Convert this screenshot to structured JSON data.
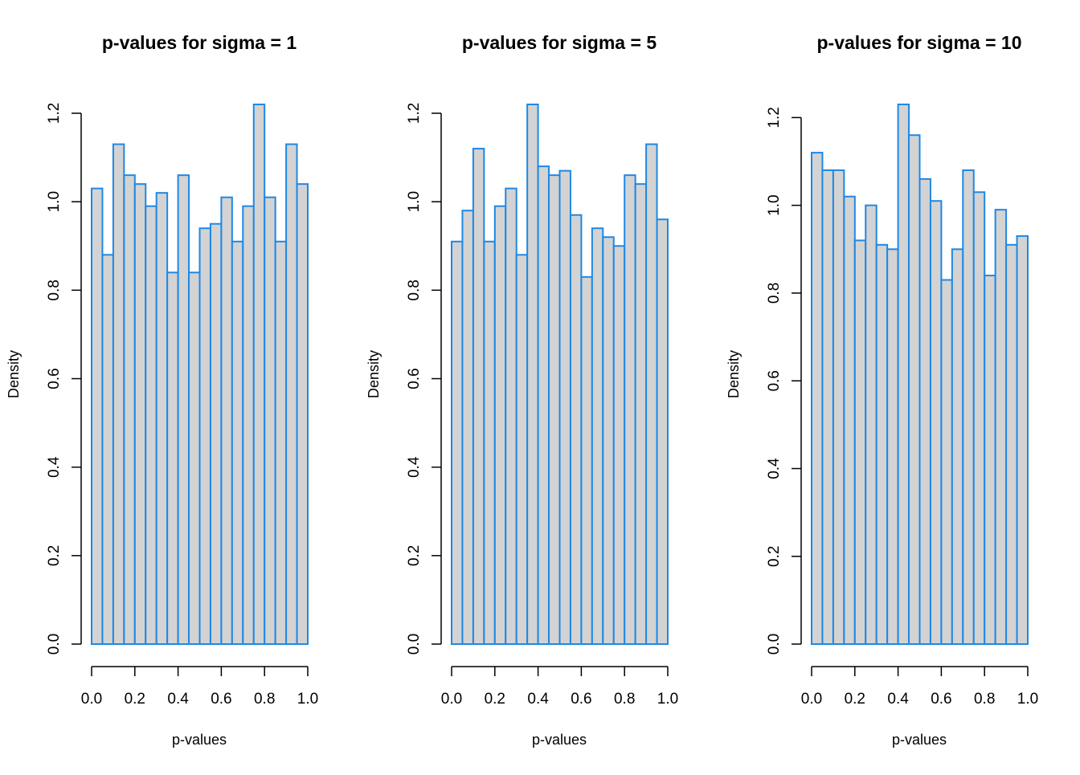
{
  "colors": {
    "bar_fill": "#d3d3d3",
    "bar_border": "#1e88e5",
    "axis": "#000000",
    "background": "#ffffff"
  },
  "chart_data": [
    {
      "type": "bar",
      "title": "p-values for sigma = 1",
      "xlabel": "p-values",
      "ylabel": "Density",
      "bin_edges": [
        0.0,
        0.05,
        0.1,
        0.15,
        0.2,
        0.25,
        0.3,
        0.35,
        0.4,
        0.45,
        0.5,
        0.55,
        0.6,
        0.65,
        0.7,
        0.75,
        0.8,
        0.85,
        0.9,
        0.95,
        1.0
      ],
      "values": [
        1.03,
        0.88,
        1.13,
        1.06,
        1.04,
        0.99,
        1.02,
        0.84,
        1.06,
        0.84,
        0.94,
        0.95,
        1.01,
        0.91,
        0.99,
        1.22,
        1.01,
        0.91,
        1.13,
        1.04
      ],
      "xlim": [
        0,
        1
      ],
      "ylim": [
        0,
        1.22
      ],
      "x_ticks": [
        "0.0",
        "0.2",
        "0.4",
        "0.6",
        "0.8",
        "1.0"
      ],
      "y_ticks": [
        "0.0",
        "0.2",
        "0.4",
        "0.6",
        "0.8",
        "1.0",
        "1.2"
      ],
      "grid": false
    },
    {
      "type": "bar",
      "title": "p-values for sigma = 5",
      "xlabel": "p-values",
      "ylabel": "Density",
      "bin_edges": [
        0.0,
        0.05,
        0.1,
        0.15,
        0.2,
        0.25,
        0.3,
        0.35,
        0.4,
        0.45,
        0.5,
        0.55,
        0.6,
        0.65,
        0.7,
        0.75,
        0.8,
        0.85,
        0.9,
        0.95,
        1.0
      ],
      "values": [
        0.91,
        0.98,
        1.12,
        0.91,
        0.99,
        1.03,
        0.88,
        1.22,
        1.08,
        1.06,
        1.07,
        0.97,
        0.83,
        0.94,
        0.92,
        0.9,
        1.06,
        1.04,
        1.13,
        0.96
      ],
      "xlim": [
        0,
        1
      ],
      "ylim": [
        0,
        1.22
      ],
      "x_ticks": [
        "0.0",
        "0.2",
        "0.4",
        "0.6",
        "0.8",
        "1.0"
      ],
      "y_ticks": [
        "0.0",
        "0.2",
        "0.4",
        "0.6",
        "0.8",
        "1.0",
        "1.2"
      ],
      "grid": false
    },
    {
      "type": "bar",
      "title": "p-values for sigma = 10",
      "xlabel": "p-values",
      "ylabel": "Density",
      "bin_edges": [
        0.0,
        0.05,
        0.1,
        0.15,
        0.2,
        0.25,
        0.3,
        0.35,
        0.4,
        0.45,
        0.5,
        0.55,
        0.6,
        0.65,
        0.7,
        0.75,
        0.8,
        0.85,
        0.9,
        0.95,
        1.0
      ],
      "values": [
        1.12,
        1.08,
        1.08,
        1.02,
        0.92,
        1.0,
        0.91,
        0.9,
        1.23,
        1.16,
        1.06,
        1.01,
        0.83,
        0.9,
        1.08,
        1.03,
        0.84,
        0.99,
        0.91,
        0.93
      ],
      "xlim": [
        0,
        1
      ],
      "ylim": [
        0,
        1.23
      ],
      "x_ticks": [
        "0.0",
        "0.2",
        "0.4",
        "0.6",
        "0.8",
        "1.0"
      ],
      "y_ticks": [
        "0.0",
        "0.2",
        "0.4",
        "0.6",
        "0.8",
        "1.0",
        "1.2"
      ],
      "grid": false
    }
  ]
}
